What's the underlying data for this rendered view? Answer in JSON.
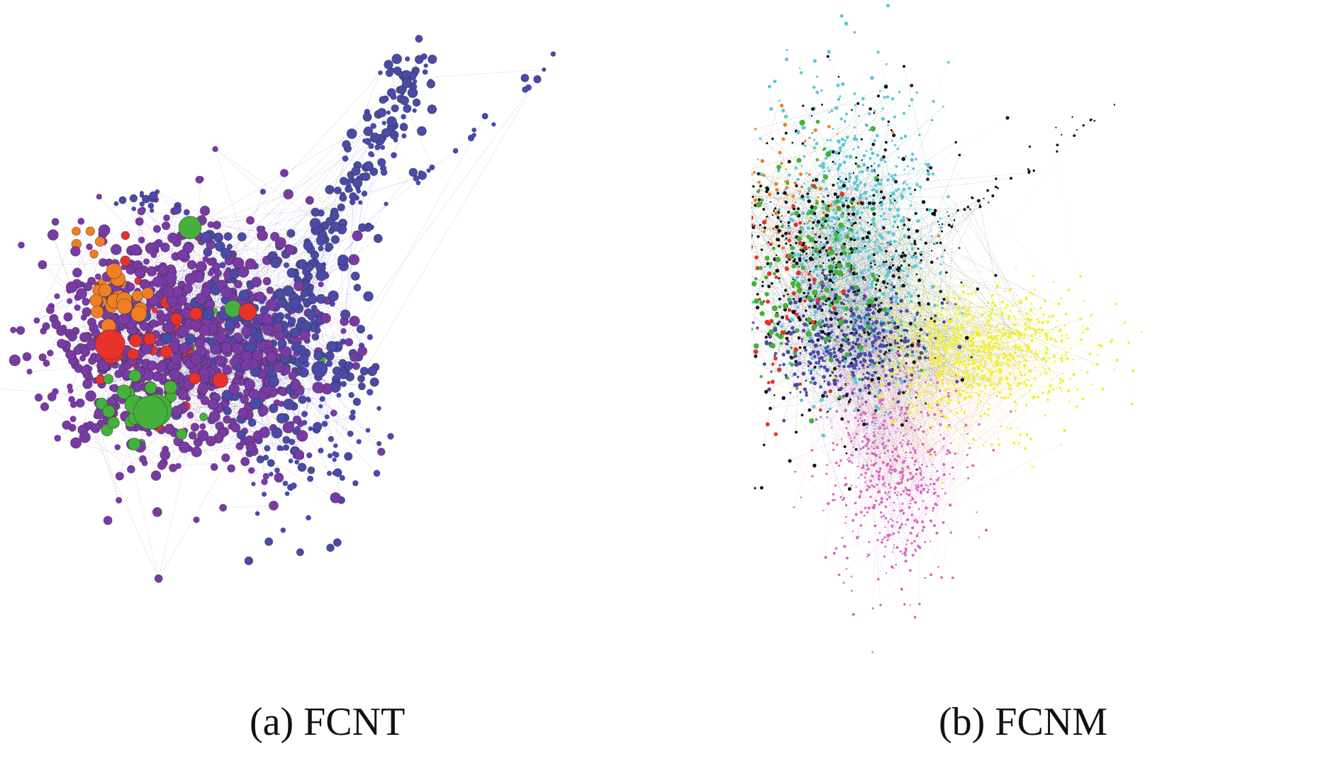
{
  "panels": [
    {
      "caption": "(a) FCNT",
      "communities": [
        {
          "color": "#7a3aa6"
        },
        {
          "color": "#4a4aa8"
        },
        {
          "color": "#e8322a"
        },
        {
          "color": "#f07f22"
        },
        {
          "color": "#45b13a"
        }
      ]
    },
    {
      "caption": "(b) FCNM",
      "communities": [
        {
          "color": "#111111"
        },
        {
          "color": "#5cc8d4"
        },
        {
          "color": "#f2ef2c"
        },
        {
          "color": "#d968be"
        },
        {
          "color": "#4a4aa8"
        },
        {
          "color": "#45b13a"
        },
        {
          "color": "#e8322a"
        },
        {
          "color": "#f07f22"
        }
      ]
    }
  ]
}
